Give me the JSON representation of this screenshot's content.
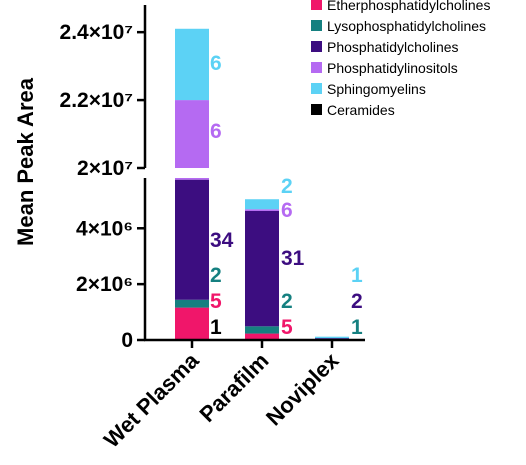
{
  "chart_data": {
    "type": "bar",
    "stacked": true,
    "broken_y_axis": true,
    "ylabel": "Mean Peak  Area",
    "categories": [
      "Wet Plasma",
      "Parafilm",
      "Noviplex"
    ],
    "y_axis_segments": {
      "lower": {
        "ylim": [
          0,
          5800000
        ],
        "ticks": [
          0,
          2000000,
          4000000
        ],
        "tick_labels": [
          "0",
          "2×10⁶",
          "4×10⁶"
        ]
      },
      "upper": {
        "ylim": [
          20000000,
          24800000
        ],
        "ticks": [
          20000000,
          22000000,
          24000000
        ],
        "tick_labels": [
          "2×10⁷",
          "2.2×10⁷",
          "2.4×10⁷"
        ]
      }
    },
    "series": [
      {
        "name": "Ceramides",
        "color": "#000000",
        "values": [
          30000,
          0,
          0
        ],
        "counts": [
          "1",
          "",
          ""
        ]
      },
      {
        "name": "Etherphosphatidylcholines",
        "color": "#f0166a",
        "values": [
          1130000,
          230000,
          0
        ],
        "counts": [
          "5",
          "5",
          ""
        ]
      },
      {
        "name": "Lysophosphatidylcholines",
        "color": "#158080",
        "values": [
          280000,
          260000,
          15000
        ],
        "counts": [
          "2",
          "2",
          "1"
        ]
      },
      {
        "name": "Phosphatidylcholines",
        "color": "#3c0d80",
        "values": [
          4300000,
          4130000,
          50000
        ],
        "counts": [
          "34",
          "31",
          "2"
        ]
      },
      {
        "name": "Phosphatidylinositols",
        "color": "#b56af2",
        "values": [
          16260000,
          60000,
          0
        ],
        "counts": [
          "6",
          "6",
          ""
        ]
      },
      {
        "name": "Sphingomyelins",
        "color": "#5cd2f5",
        "values": [
          2100000,
          360000,
          5000
        ],
        "counts": [
          "6",
          "2",
          "1"
        ]
      }
    ],
    "legend": {
      "placement": "top-right",
      "order": [
        "Etherphosphatidylcholines",
        "Lysophosphatidylcholines",
        "Phosphatidylcholines",
        "Phosphatidylinositols",
        "Sphingomyelins",
        "Ceramides"
      ]
    }
  }
}
